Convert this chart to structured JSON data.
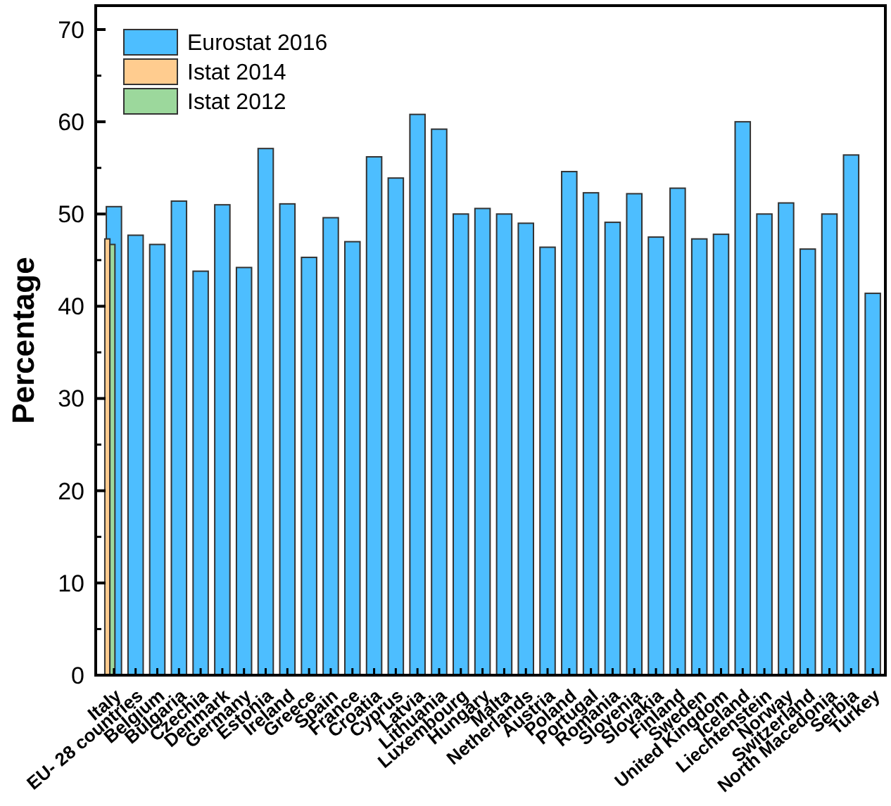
{
  "chart_data": {
    "type": "bar",
    "ylabel": "Percentage",
    "categories": [
      "Italy",
      "EU- 28 countries",
      "Belgium",
      "Bulgaria",
      "Czechia",
      "Denmark",
      "Germany",
      "Estonia",
      "Ireland",
      "Greece",
      "Spain",
      "France",
      "Croatia",
      "Cyprus",
      "Latvia",
      "Lithuania",
      "Luxembourg",
      "Hungary",
      "Malta",
      "Netherlands",
      "Austria",
      "Poland",
      "Portugal",
      "Romania",
      "Slovenia",
      "Slovakia",
      "Finland",
      "Sweden",
      "United Kingdom",
      "Iceland",
      "Liechtenstein",
      "Norway",
      "Switzerland",
      "North Macedonia",
      "Serbia",
      "Turkey"
    ],
    "series": [
      {
        "name": "Eurostat 2016",
        "color": "#4dbeff",
        "values": [
          50.8,
          47.7,
          46.7,
          51.4,
          43.8,
          51.0,
          44.2,
          57.1,
          51.1,
          45.3,
          49.6,
          47.0,
          56.2,
          53.9,
          60.8,
          59.2,
          50.0,
          50.6,
          50.0,
          49.0,
          46.4,
          54.6,
          52.3,
          49.1,
          52.2,
          47.5,
          52.8,
          47.3,
          47.8,
          60.0,
          50.0,
          51.2,
          46.2,
          50.0,
          56.4,
          41.4
        ]
      },
      {
        "name": "Istat 2014",
        "color": "#ffcc8f",
        "values": [
          47.3,
          null,
          null,
          null,
          null,
          null,
          null,
          null,
          null,
          null,
          null,
          null,
          null,
          null,
          null,
          null,
          null,
          null,
          null,
          null,
          null,
          null,
          null,
          null,
          null,
          null,
          null,
          null,
          null,
          null,
          null,
          null,
          null,
          null,
          null,
          null
        ]
      },
      {
        "name": "Istat 2012",
        "color": "#9cd89c",
        "values": [
          46.7,
          null,
          null,
          null,
          null,
          null,
          null,
          null,
          null,
          null,
          null,
          null,
          null,
          null,
          null,
          null,
          null,
          null,
          null,
          null,
          null,
          null,
          null,
          null,
          null,
          null,
          null,
          null,
          null,
          null,
          null,
          null,
          null,
          null,
          null,
          null
        ]
      }
    ],
    "ylim": [
      0,
      70
    ],
    "yticks": [
      0,
      10,
      20,
      30,
      40,
      50,
      60,
      70
    ],
    "legend": "top left"
  }
}
